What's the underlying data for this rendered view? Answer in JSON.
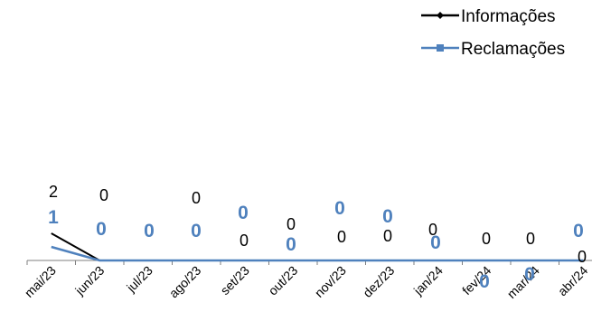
{
  "colors": {
    "informacoes": "#000000",
    "reclamacoes": "#4F81BD",
    "axis": "#7F7F7F",
    "background": "#FFFFFF"
  },
  "chart_data": {
    "type": "line",
    "categories": [
      "mai/23",
      "jun/23",
      "jul/23",
      "ago/23",
      "set/23",
      "out/23",
      "nov/23",
      "dez/23",
      "jan/24",
      "fev/24",
      "mar/24",
      "abr/24"
    ],
    "series": [
      {
        "name": "Informações",
        "values": [
          2,
          0,
          0,
          0,
          0,
          0,
          0,
          0,
          0,
          0,
          0,
          0
        ],
        "marker": "diamond",
        "color": "#000000"
      },
      {
        "name": "Reclamações",
        "values": [
          1,
          0,
          0,
          0,
          0,
          0,
          0,
          0,
          0,
          0,
          0,
          0
        ],
        "marker": "square",
        "color": "#4F81BD"
      }
    ],
    "data_labels": {
      "Informações": [
        "2",
        "0",
        "",
        "0",
        "0",
        "0",
        "0",
        "0",
        "0",
        "0",
        "0",
        "0"
      ],
      "Reclamações": [
        "1",
        "0",
        "0",
        "0",
        "0",
        "0",
        "0",
        "0",
        "0",
        "0",
        "0",
        "0"
      ]
    },
    "title": "",
    "xlabel": "",
    "ylabel": "",
    "ylim": [
      0,
      20
    ],
    "grid": false,
    "legend_position": "top-right",
    "x_tick_rotation": -45
  }
}
